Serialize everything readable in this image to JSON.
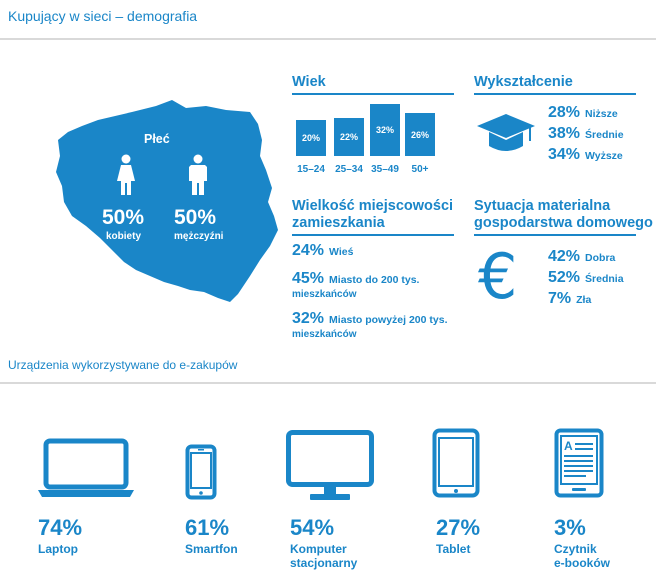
{
  "header": {
    "title": "Kupujący w sieci – demografia"
  },
  "gender": {
    "heading": "Płeć",
    "female": {
      "percent": "50%",
      "label": "kobiety",
      "icon": "female-person-icon"
    },
    "male": {
      "percent": "50%",
      "label": "mężczyźni",
      "icon": "male-person-icon"
    }
  },
  "age": {
    "heading": "Wiek",
    "bars": [
      {
        "range": "15–24",
        "value": "20%"
      },
      {
        "range": "25–34",
        "value": "22%"
      },
      {
        "range": "35–49",
        "value": "32%"
      },
      {
        "range": "50+",
        "value": "26%"
      }
    ]
  },
  "education": {
    "heading": "Wykształcenie",
    "icon": "graduation-cap-icon",
    "items": [
      {
        "percent": "28%",
        "label": "Niższe"
      },
      {
        "percent": "38%",
        "label": "Średnie"
      },
      {
        "percent": "34%",
        "label": "Wyższe"
      }
    ]
  },
  "city_size": {
    "heading_line1": "Wielkość miejscowości",
    "heading_line2": "zamieszkania",
    "items": [
      {
        "percent": "24%",
        "label_line1": "Wieś",
        "label_line2": ""
      },
      {
        "percent": "45%",
        "label_line1": "Miasto do 200 tys.",
        "label_line2": "mieszkańców"
      },
      {
        "percent": "32%",
        "label_line1": "Miasto powyżej 200 tys.",
        "label_line2": "mieszkańców"
      }
    ]
  },
  "material": {
    "heading_line1": "Sytuacja materialna",
    "heading_line2": "gospodarstwa domowego",
    "icon": "euro-icon",
    "symbol": "€",
    "items": [
      {
        "percent": "42%",
        "label": "Dobra"
      },
      {
        "percent": "52%",
        "label": "Średnia"
      },
      {
        "percent": "7%",
        "label": "Zła"
      }
    ]
  },
  "devices": {
    "heading": "Urządzenia wykorzystywane do e-zakupów",
    "items": [
      {
        "percent": "74%",
        "label_line1": "Laptop",
        "label_line2": "",
        "icon": "laptop-icon"
      },
      {
        "percent": "61%",
        "label_line1": "Smartfon",
        "label_line2": "",
        "icon": "smartphone-icon"
      },
      {
        "percent": "54%",
        "label_line1": "Komputer",
        "label_line2": "stacjonarny",
        "icon": "desktop-computer-icon"
      },
      {
        "percent": "27%",
        "label_line1": "Tablet",
        "label_line2": "",
        "icon": "tablet-icon"
      },
      {
        "percent": "3%",
        "label_line1": "Czytnik",
        "label_line2": "e-booków",
        "icon": "ebook-reader-icon"
      }
    ]
  },
  "colors": {
    "accent": "#1a86c8",
    "divider": "#d9d9d9"
  }
}
